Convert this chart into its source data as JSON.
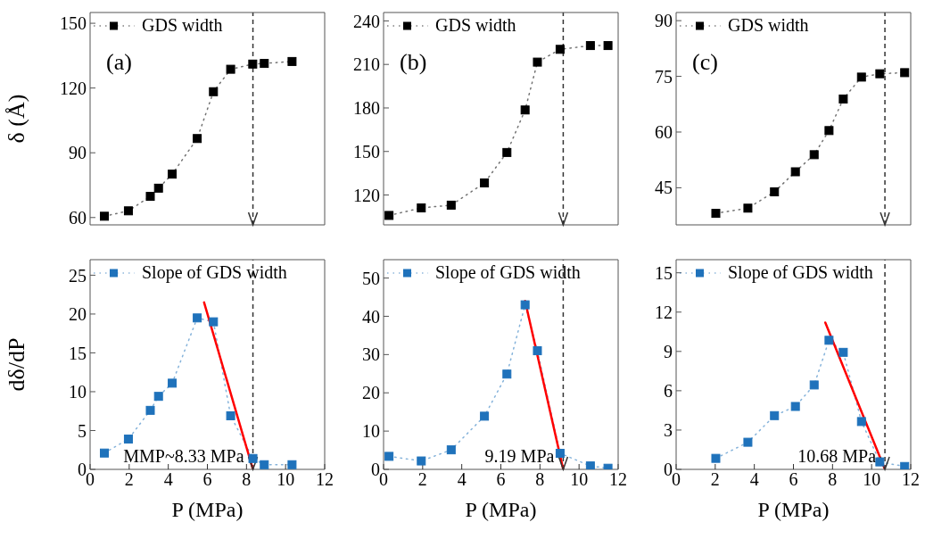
{
  "chart_data": [
    {
      "type": "line",
      "ylabel": "δ (Å)",
      "xlim": [
        0,
        12
      ],
      "xticks": [
        0,
        2,
        4,
        6,
        8,
        10,
        12
      ],
      "ylim": [
        56.6,
        155
      ],
      "yticks": [
        60,
        90,
        120,
        150
      ],
      "tick_labels": "y",
      "legend": "top left",
      "annotations": [
        "(a)"
      ],
      "series": [
        {
          "name": "GDS width",
          "color": "#000000",
          "marker": "square",
          "line_style": "dotted",
          "x": [
            0.73,
            1.96,
            3.08,
            3.5,
            4.2,
            5.48,
            6.31,
            7.19,
            8.32,
            8.91,
            10.33
          ],
          "values": [
            60.6,
            63.1,
            69.8,
            73.6,
            80.1,
            96.6,
            118.3,
            128.7,
            131.1,
            131.4,
            132.3
          ]
        }
      ],
      "ref_lines": [
        {
          "axis": "x",
          "value": 8.33,
          "color": "#333333",
          "line_style": "dashed"
        }
      ]
    },
    {
      "type": "line",
      "xlim": [
        0,
        12
      ],
      "xticks": [
        0,
        2,
        4,
        6,
        8,
        10,
        12
      ],
      "ylim": [
        99.4,
        245.8
      ],
      "yticks": [
        120,
        150,
        180,
        210,
        240
      ],
      "tick_labels": "y",
      "legend": "top left",
      "annotations": [
        "(b)"
      ],
      "series": [
        {
          "name": "GDS width",
          "color": "#000000",
          "marker": "square",
          "line_style": "dotted",
          "x": [
            0.28,
            1.93,
            3.46,
            5.16,
            6.31,
            7.24,
            7.87,
            9.03,
            10.58,
            11.48
          ],
          "values": [
            105.9,
            111.1,
            113,
            128.3,
            149.3,
            178.6,
            211.6,
            220.4,
            223,
            223
          ]
        }
      ],
      "ref_lines": [
        {
          "axis": "x",
          "value": 9.19,
          "color": "#333333",
          "line_style": "dashed"
        }
      ]
    },
    {
      "type": "line",
      "xlim": [
        0,
        12
      ],
      "xticks": [
        0,
        2,
        4,
        6,
        8,
        10,
        12
      ],
      "ylim": [
        35,
        92.2
      ],
      "yticks": [
        45,
        60,
        75,
        90
      ],
      "tick_labels": "y",
      "legend": "top left",
      "annotations": [
        "(c)"
      ],
      "series": [
        {
          "name": "GDS width",
          "color": "#000000",
          "marker": "square",
          "line_style": "dotted",
          "x": [
            2.03,
            3.67,
            5.03,
            6.1,
            7.06,
            7.82,
            8.55,
            9.48,
            10.42,
            11.69
          ],
          "values": [
            38.1,
            39.5,
            43.9,
            49.3,
            53.9,
            60.4,
            68.9,
            74.8,
            75.7,
            76.0
          ]
        }
      ],
      "ref_lines": [
        {
          "axis": "x",
          "value": 10.68,
          "color": "#333333",
          "line_style": "dashed"
        }
      ]
    },
    {
      "type": "line",
      "xlabel": "P (MPa)",
      "ylabel": "dδ/dP",
      "xlim": [
        0,
        12
      ],
      "xticks": [
        0,
        2,
        4,
        6,
        8,
        10,
        12
      ],
      "ylim": [
        0,
        27
      ],
      "yticks": [
        0,
        5,
        10,
        15,
        20,
        25
      ],
      "legend": "top left",
      "annotations": [
        {
          "text": "MMP~8.33 MPa",
          "x": 8.33,
          "y": 0
        }
      ],
      "series": [
        {
          "name": "Slope of GDS width",
          "color": "#1f72bb",
          "marker": "square",
          "line_style": "dotted",
          "x": [
            0.73,
            1.96,
            3.08,
            3.5,
            4.2,
            5.48,
            6.31,
            7.19,
            8.33,
            8.91,
            10.33
          ],
          "values": [
            2.1,
            3.9,
            7.6,
            9.4,
            11.1,
            19.5,
            19.0,
            6.9,
            1.4,
            0.6,
            0.6
          ]
        },
        {
          "type": "line",
          "color": "#ff0000",
          "marker": "none",
          "line_style": "solid",
          "x": [
            5.83,
            8.33
          ],
          "values": [
            21.5,
            0
          ]
        }
      ],
      "ref_lines": [
        {
          "axis": "x",
          "value": 8.33,
          "color": "#333333",
          "line_style": "dashed"
        }
      ]
    },
    {
      "type": "line",
      "xlabel": "P (MPa)",
      "xlim": [
        0,
        12
      ],
      "xticks": [
        0,
        2,
        4,
        6,
        8,
        10,
        12
      ],
      "ylim": [
        0,
        54.8
      ],
      "yticks": [
        0,
        10,
        20,
        30,
        40,
        50
      ],
      "legend": "top left",
      "annotations": [
        {
          "text": "9.19 MPa",
          "x": 9.19,
          "y": 0
        }
      ],
      "series": [
        {
          "name": "Slope of GDS width",
          "color": "#1f72bb",
          "marker": "square",
          "line_style": "dotted",
          "x": [
            0.28,
            1.93,
            3.46,
            5.16,
            6.31,
            7.24,
            7.87,
            9.03,
            10.58,
            11.48
          ],
          "values": [
            3.4,
            2.2,
            5.1,
            13.9,
            24.9,
            43.0,
            31.0,
            4.2,
            0.9,
            0.3
          ]
        },
        {
          "type": "line",
          "color": "#ff0000",
          "marker": "none",
          "line_style": "solid",
          "x": [
            7.24,
            9.19
          ],
          "values": [
            44.0,
            0
          ]
        }
      ],
      "ref_lines": [
        {
          "axis": "x",
          "value": 9.19,
          "color": "#333333",
          "line_style": "dashed"
        }
      ]
    },
    {
      "type": "line",
      "xlabel": "P (MPa)",
      "xlim": [
        0,
        12
      ],
      "xticks": [
        0,
        2,
        4,
        6,
        8,
        10,
        12
      ],
      "ylim": [
        0,
        16
      ],
      "yticks": [
        0,
        3,
        6,
        9,
        12,
        15
      ],
      "legend": "top left",
      "annotations": [
        {
          "text": "10.68 MPa",
          "x": 10.68,
          "y": 0
        }
      ],
      "series": [
        {
          "name": "Slope of GDS width",
          "color": "#1f72bb",
          "marker": "square",
          "line_style": "dotted",
          "x": [
            2.03,
            3.67,
            5.03,
            6.1,
            7.06,
            7.82,
            8.55,
            9.48,
            10.42,
            11.69
          ],
          "values": [
            0.84,
            2.07,
            4.1,
            4.8,
            6.44,
            9.85,
            8.93,
            3.65,
            0.57,
            0.22
          ]
        },
        {
          "type": "line",
          "color": "#ff0000",
          "marker": "none",
          "line_style": "solid",
          "x": [
            7.63,
            10.68
          ],
          "values": [
            11.2,
            0
          ]
        }
      ],
      "ref_lines": [
        {
          "axis": "x",
          "value": 10.68,
          "color": "#333333",
          "line_style": "dashed"
        }
      ]
    }
  ]
}
